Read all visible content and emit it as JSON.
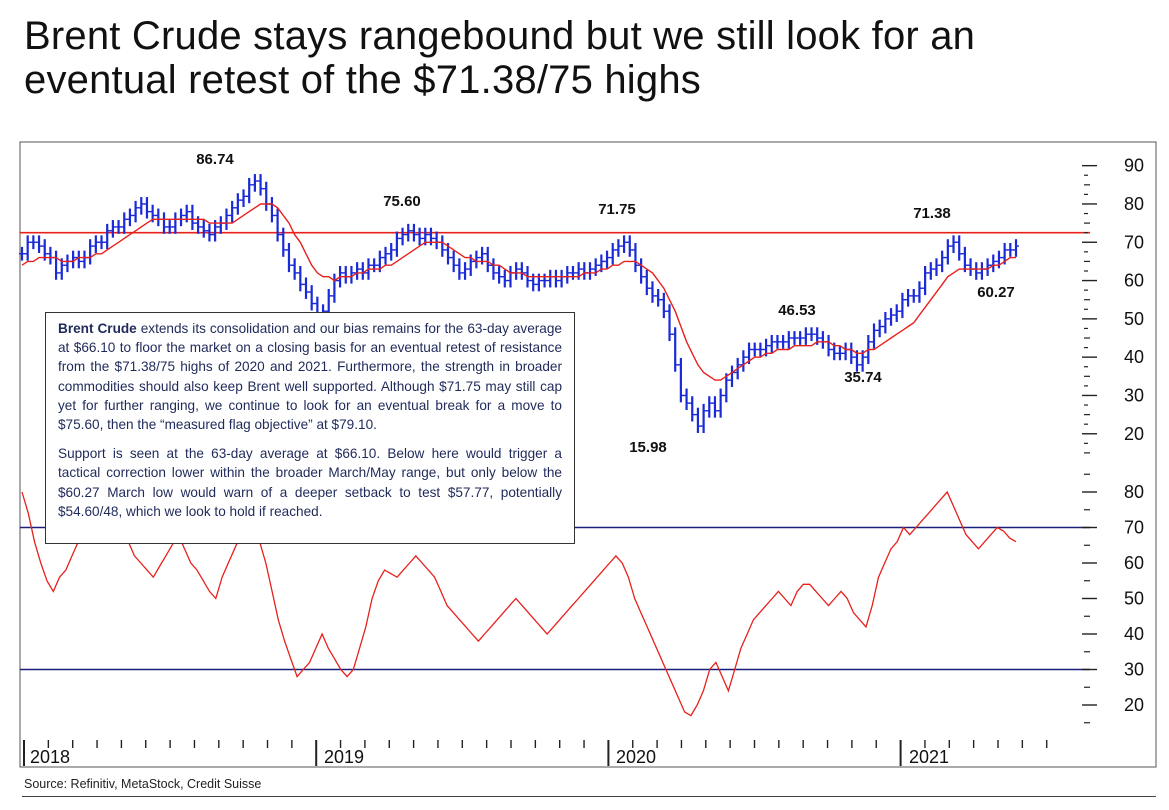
{
  "title": {
    "line1": "Brent Crude stays rangebound but we still look for an",
    "line2": "eventual retest of the $71.38/75 highs"
  },
  "source": "Source: Refinitiv, MetaStock, Credit Suisse",
  "commentary": {
    "p1_lead": "Brent Crude",
    "p1_body": " extends its consolidation and our bias remains for the 63-day average at $66.10 to floor the market on a closing basis for an eventual retest of resistance from the $71.38/75 highs of 2020 and 2021. Furthermore, the strength in broader commodities should also keep Brent well supported. Although $71.75 may still cap yet for further ranging, we continue to look for an eventual break for a move to $75.60, then the “measured flag objective” at $79.10.",
    "p2": "Support is seen at the 63-day average at $66.10. Below here would trigger a tactical correction lower within the broader March/May range, but only below the $60.27 March low would warn of a deeper setback to test $57.77, potentially $54.60/48, which we look to hold if reached."
  },
  "colors": {
    "bars": "#1a2ad6",
    "average": "#e8201c",
    "resistance": "#e8201c",
    "rsi": "#e8201c",
    "rsi_levels": "#1a1f7a",
    "frame": "#555555"
  },
  "chart_data": [
    {
      "type": "line",
      "title": "",
      "series_style": "weekly bars with moving average",
      "x_labels": [
        "2018",
        "2019",
        "2020",
        "2021"
      ],
      "y_ticks": [
        20,
        30,
        40,
        50,
        60,
        70,
        80,
        90
      ],
      "ylim": [
        13,
        92
      ],
      "xlim": [
        "2018-01",
        "2021-07"
      ],
      "resistance_level": 72.5,
      "annotations": [
        {
          "label": "86.74",
          "x": "2018-10",
          "y": 86.74
        },
        {
          "label": "75.60",
          "x": "2019-04",
          "y": 75.6
        },
        {
          "label": "71.75",
          "x": "2020-01",
          "y": 71.75
        },
        {
          "label": "46.53",
          "x": "2020-08",
          "y": 46.53
        },
        {
          "label": "35.74",
          "x": "2020-11",
          "y": 35.74
        },
        {
          "label": "15.98",
          "x": "2020-04",
          "y": 15.98
        },
        {
          "label": "71.38",
          "x": "2021-03",
          "y": 71.38
        },
        {
          "label": "60.27",
          "x": "2021-03",
          "y": 60.27
        }
      ],
      "price": [
        67,
        70,
        70,
        69,
        67,
        66,
        62,
        64,
        65,
        66,
        65,
        66,
        69,
        70,
        70,
        73,
        74,
        74,
        76,
        77,
        79,
        80,
        78,
        77,
        76,
        74,
        74,
        76,
        77,
        78,
        75,
        74,
        73,
        72,
        74,
        75,
        77,
        79,
        81,
        82,
        85,
        86,
        84,
        80,
        77,
        72,
        68,
        64,
        62,
        59,
        57,
        54,
        50,
        52,
        56,
        60,
        62,
        61,
        62,
        63,
        62,
        64,
        64,
        66,
        67,
        68,
        71,
        72,
        73,
        72,
        71,
        72,
        71,
        70,
        68,
        66,
        64,
        62,
        63,
        65,
        66,
        67,
        64,
        62,
        61,
        60,
        62,
        63,
        62,
        60,
        59,
        60,
        60,
        61,
        60,
        61,
        62,
        62,
        63,
        62,
        63,
        64,
        65,
        66,
        68,
        69,
        70,
        68,
        64,
        61,
        58,
        56,
        55,
        52,
        46,
        38,
        30,
        28,
        25,
        22,
        26,
        28,
        26,
        30,
        34,
        36,
        38,
        40,
        42,
        42,
        42,
        43,
        44,
        44,
        44,
        45,
        45,
        45,
        46,
        46,
        45,
        44,
        42,
        41,
        41,
        42,
        40,
        38,
        40,
        44,
        47,
        48,
        50,
        51,
        52,
        55,
        56,
        56,
        58,
        62,
        63,
        64,
        66,
        69,
        70,
        67,
        64,
        63,
        62,
        63,
        64,
        65,
        66,
        68,
        68,
        69
      ],
      "average": [
        64,
        65,
        65,
        66,
        66,
        66,
        66,
        65,
        65,
        65,
        66,
        66,
        66,
        67,
        67,
        68,
        69,
        70,
        71,
        72,
        73,
        74,
        75,
        76,
        76,
        76,
        76,
        76,
        76,
        76,
        76,
        76,
        76,
        75,
        75,
        75,
        75,
        75,
        76,
        77,
        78,
        79,
        80,
        80,
        80,
        79,
        77,
        75,
        72,
        70,
        67,
        64,
        62,
        61,
        61,
        60,
        61,
        61,
        61,
        62,
        62,
        63,
        63,
        63,
        64,
        64,
        65,
        66,
        67,
        68,
        69,
        70,
        70,
        70,
        70,
        69,
        68,
        67,
        66,
        66,
        65,
        65,
        65,
        64,
        64,
        63,
        62,
        62,
        62,
        61,
        61,
        61,
        61,
        61,
        61,
        61,
        61,
        61,
        61,
        62,
        62,
        62,
        63,
        63,
        64,
        64,
        65,
        65,
        65,
        64,
        63,
        62,
        60,
        58,
        55,
        52,
        48,
        44,
        41,
        38,
        36,
        35,
        34,
        34,
        35,
        36,
        37,
        38,
        39,
        40,
        40,
        41,
        41,
        42,
        42,
        42,
        43,
        43,
        43,
        43,
        44,
        44,
        44,
        43,
        43,
        42,
        42,
        41,
        41,
        42,
        42,
        43,
        44,
        45,
        46,
        47,
        48,
        49,
        51,
        53,
        55,
        57,
        59,
        61,
        62,
        63,
        63,
        63,
        63,
        63,
        63,
        64,
        64,
        65,
        66,
        66
      ]
    },
    {
      "type": "line",
      "title": "",
      "series_style": "momentum oscillator",
      "y_ticks": [
        20,
        30,
        40,
        50,
        60,
        70,
        80
      ],
      "ylim": [
        13,
        86
      ],
      "levels": [
        70,
        30
      ],
      "values": [
        80,
        74,
        66,
        60,
        55,
        52,
        56,
        58,
        62,
        66,
        70,
        72,
        75,
        74,
        72,
        70,
        68,
        66,
        62,
        60,
        58,
        56,
        59,
        62,
        65,
        68,
        64,
        60,
        58,
        55,
        52,
        50,
        56,
        60,
        64,
        68,
        70,
        68,
        66,
        60,
        52,
        44,
        38,
        33,
        28,
        30,
        32,
        36,
        40,
        36,
        33,
        30,
        28,
        30,
        36,
        42,
        50,
        55,
        58,
        57,
        56,
        58,
        60,
        62,
        60,
        58,
        56,
        52,
        48,
        46,
        44,
        42,
        40,
        38,
        40,
        42,
        44,
        46,
        48,
        50,
        48,
        46,
        44,
        42,
        40,
        42,
        44,
        46,
        48,
        50,
        52,
        54,
        56,
        58,
        60,
        62,
        60,
        56,
        50,
        46,
        42,
        38,
        34,
        30,
        26,
        22,
        18,
        17,
        20,
        24,
        30,
        32,
        28,
        24,
        30,
        36,
        40,
        44,
        46,
        48,
        50,
        52,
        50,
        48,
        52,
        54,
        54,
        52,
        50,
        48,
        50,
        52,
        50,
        46,
        44,
        42,
        48,
        56,
        60,
        64,
        66,
        70,
        68,
        70,
        72,
        74,
        76,
        78,
        80,
        76,
        72,
        68,
        66,
        64,
        66,
        68,
        70,
        69,
        67,
        66
      ],
      "note": "approximate readings"
    }
  ]
}
